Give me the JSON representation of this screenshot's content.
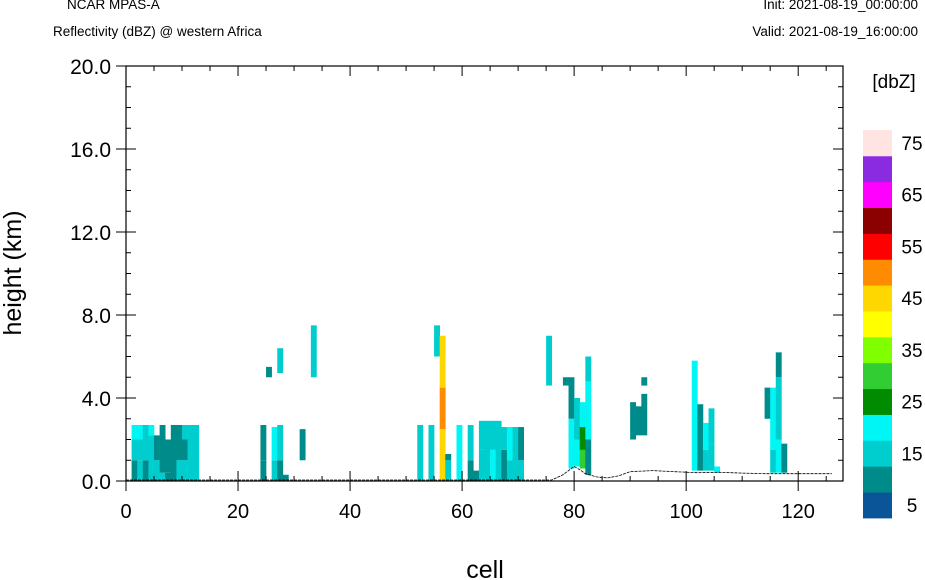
{
  "header": {
    "model": "NCAR MPAS-A",
    "field": "Reflectivity (dBZ) @ western Africa",
    "init": "Init: 2021-08-19_00:00:00",
    "valid": "Valid: 2021-08-19_16:00:00"
  },
  "chart_data": {
    "type": "heatmap",
    "xlabel": "cell",
    "ylabel": "height (km)",
    "xlim": [
      0,
      128
    ],
    "ylim": [
      0,
      20
    ],
    "x_ticks": [
      "0",
      "20",
      "40",
      "60",
      "80",
      "100",
      "120"
    ],
    "y_ticks": [
      "0.0",
      "4.0",
      "8.0",
      "12.0",
      "16.0",
      "20.0"
    ],
    "grid": false,
    "colorbar": {
      "title": "[dbZ]",
      "labels": [
        "5",
        "15",
        "25",
        "35",
        "45",
        "55",
        "65",
        "75"
      ],
      "colors": [
        "#0a5597",
        "#008b8b",
        "#00cdcd",
        "#00f5f5",
        "#008b00",
        "#32cd32",
        "#7fff00",
        "#ffff00",
        "#ffd700",
        "#ff8c00",
        "#ff0000",
        "#8b0000",
        "#ff00ff",
        "#8a2be2",
        "#ffe4e1"
      ]
    },
    "terrain": [
      [
        0,
        0.05
      ],
      [
        76,
        0.05
      ],
      [
        78,
        0.3
      ],
      [
        80,
        0.7
      ],
      [
        81,
        0.55
      ],
      [
        82,
        0.35
      ],
      [
        84,
        0.2
      ],
      [
        86,
        0.15
      ],
      [
        88,
        0.25
      ],
      [
        90,
        0.45
      ],
      [
        94,
        0.5
      ],
      [
        98,
        0.45
      ],
      [
        102,
        0.4
      ],
      [
        106,
        0.42
      ],
      [
        110,
        0.38
      ],
      [
        114,
        0.35
      ],
      [
        118,
        0.35
      ],
      [
        122,
        0.35
      ],
      [
        126,
        0.35
      ]
    ],
    "echoes": [
      {
        "x": 1,
        "z": [
          0.0,
          1.0,
          2.0,
          2.7
        ],
        "dbz": [
          6,
          13,
          15
        ]
      },
      {
        "x": 2,
        "z": [
          0.0,
          1.0,
          2.0,
          2.7
        ],
        "dbz": [
          10,
          13,
          15
        ]
      },
      {
        "x": 3,
        "z": [
          0.0,
          1.0,
          2.0,
          2.7
        ],
        "dbz": [
          6,
          11,
          13
        ]
      },
      {
        "x": 4,
        "z": [
          0.0,
          2.2,
          2.7
        ],
        "dbz": [
          11,
          15
        ]
      },
      {
        "x": 5,
        "z": [
          0.0,
          1.0,
          2.2
        ],
        "dbz": [
          10,
          5
        ]
      },
      {
        "x": 6,
        "z": [
          0.0,
          0.4,
          2.7
        ],
        "dbz": [
          10,
          6
        ]
      },
      {
        "x": 7,
        "z": [
          0.0,
          0.4,
          2.0
        ],
        "dbz": [
          6,
          5
        ]
      },
      {
        "x": 8,
        "z": [
          0.0,
          2.7
        ],
        "dbz": [
          6
        ]
      },
      {
        "x": 9,
        "z": [
          0.0,
          1.0,
          2.7
        ],
        "dbz": [
          10,
          5
        ]
      },
      {
        "x": 10,
        "z": [
          0.0,
          1.0,
          2.0,
          2.7
        ],
        "dbz": [
          10,
          6,
          10
        ]
      },
      {
        "x": 11,
        "z": [
          0.0,
          2.0,
          2.7
        ],
        "dbz": [
          13,
          10
        ]
      },
      {
        "x": 12,
        "z": [
          0.0,
          2.7
        ],
        "dbz": [
          10
        ]
      },
      {
        "x": 24,
        "z": [
          0.0,
          1.0,
          2.7
        ],
        "dbz": [
          6,
          5
        ]
      },
      {
        "x": 25,
        "z": [
          5.0,
          5.5
        ],
        "dbz": [
          6
        ]
      },
      {
        "x": 26,
        "z": [
          0.0,
          1.0,
          2.6
        ],
        "dbz": [
          10,
          17
        ]
      },
      {
        "x": 27,
        "z": [
          0.0,
          1.0,
          2.7
        ],
        "dbz": [
          6,
          10
        ]
      },
      {
        "x": 27,
        "z": [
          5.2,
          6.4
        ],
        "dbz": [
          13
        ]
      },
      {
        "x": 28,
        "z": [
          0.0,
          0.3
        ],
        "dbz": [
          6
        ]
      },
      {
        "x": 31,
        "z": [
          1.0,
          2.5
        ],
        "dbz": [
          6
        ]
      },
      {
        "x": 33,
        "z": [
          5.0,
          7.5
        ],
        "dbz": [
          11
        ]
      },
      {
        "x": 52,
        "z": [
          0.0,
          2.7
        ],
        "dbz": [
          10
        ]
      },
      {
        "x": 54,
        "z": [
          0.0,
          2.7
        ],
        "dbz": [
          10
        ]
      },
      {
        "x": 55,
        "z": [
          6.0,
          7.5
        ],
        "dbz": [
          11
        ]
      },
      {
        "x": 56,
        "z": [
          0.0,
          2.5,
          4.5,
          7.0
        ],
        "dbz": [
          42,
          46,
          42
        ]
      },
      {
        "x": 57,
        "z": [
          0.0,
          1.0,
          1.3
        ],
        "dbz": [
          10,
          5
        ]
      },
      {
        "x": 59,
        "z": [
          0.0,
          2.7
        ],
        "dbz": [
          17
        ]
      },
      {
        "x": 61,
        "z": [
          0.0,
          1.0,
          2.7
        ],
        "dbz": [
          6,
          10
        ]
      },
      {
        "x": 62,
        "z": [
          0.0,
          0.5
        ],
        "dbz": [
          6
        ]
      },
      {
        "x": 63,
        "z": [
          0.0,
          1.5,
          2.9
        ],
        "dbz": [
          10,
          10
        ]
      },
      {
        "x": 64,
        "z": [
          0.0,
          2.9
        ],
        "dbz": [
          10
        ]
      },
      {
        "x": 65,
        "z": [
          0.0,
          1.5,
          2.9
        ],
        "dbz": [
          15,
          10
        ]
      },
      {
        "x": 66,
        "z": [
          0.0,
          2.9
        ],
        "dbz": [
          10
        ]
      },
      {
        "x": 67,
        "z": [
          0.0,
          1.5,
          2.6
        ],
        "dbz": [
          6,
          10
        ]
      },
      {
        "x": 68,
        "z": [
          0.0,
          1.0,
          2.6
        ],
        "dbz": [
          10,
          15
        ]
      },
      {
        "x": 69,
        "z": [
          0.0,
          2.6
        ],
        "dbz": [
          11
        ]
      },
      {
        "x": 70,
        "z": [
          0.0,
          1.0,
          2.6
        ],
        "dbz": [
          10,
          6
        ]
      },
      {
        "x": 75,
        "z": [
          4.6,
          7.0
        ],
        "dbz": [
          11
        ]
      },
      {
        "x": 78,
        "z": [
          4.6,
          5.0
        ],
        "dbz": [
          6
        ]
      },
      {
        "x": 79,
        "z": [
          0.6,
          3.0,
          5.0
        ],
        "dbz": [
          15,
          6
        ]
      },
      {
        "x": 80,
        "z": [
          0.7,
          2.0,
          4.0
        ],
        "dbz": [
          17,
          11
        ]
      },
      {
        "x": 81,
        "z": [
          0.6,
          1.5,
          2.6,
          3.8
        ],
        "dbz": [
          26,
          23,
          15
        ]
      },
      {
        "x": 82,
        "z": [
          0.3,
          2.0,
          4.8,
          6.0
        ],
        "dbz": [
          6,
          17,
          11
        ]
      },
      {
        "x": 90,
        "z": [
          2.0,
          3.8
        ],
        "dbz": [
          6
        ]
      },
      {
        "x": 91,
        "z": [
          2.2,
          3.6
        ],
        "dbz": [
          6
        ]
      },
      {
        "x": 92,
        "z": [
          2.2,
          4.2
        ],
        "dbz": [
          6
        ]
      },
      {
        "x": 92,
        "z": [
          4.6,
          5.0
        ],
        "dbz": [
          6
        ]
      },
      {
        "x": 101,
        "z": [
          0.5,
          2.0,
          5.8
        ],
        "dbz": [
          15,
          17
        ]
      },
      {
        "x": 102,
        "z": [
          0.5,
          3.7
        ],
        "dbz": [
          6
        ]
      },
      {
        "x": 103,
        "z": [
          0.5,
          1.5,
          2.8
        ],
        "dbz": [
          10,
          15
        ]
      },
      {
        "x": 104,
        "z": [
          0.5,
          1.8,
          3.5
        ],
        "dbz": [
          13,
          10
        ]
      },
      {
        "x": 105,
        "z": [
          0.4,
          0.7
        ],
        "dbz": [
          15
        ]
      },
      {
        "x": 114,
        "z": [
          3.0,
          4.5
        ],
        "dbz": [
          6
        ]
      },
      {
        "x": 115,
        "z": [
          0.4,
          1.5,
          4.5
        ],
        "dbz": [
          10,
          15
        ]
      },
      {
        "x": 116,
        "z": [
          0.4,
          2.0,
          5.0,
          6.2
        ],
        "dbz": [
          17,
          10,
          6
        ]
      },
      {
        "x": 117,
        "z": [
          0.4,
          1.8
        ],
        "dbz": [
          6
        ]
      }
    ]
  }
}
